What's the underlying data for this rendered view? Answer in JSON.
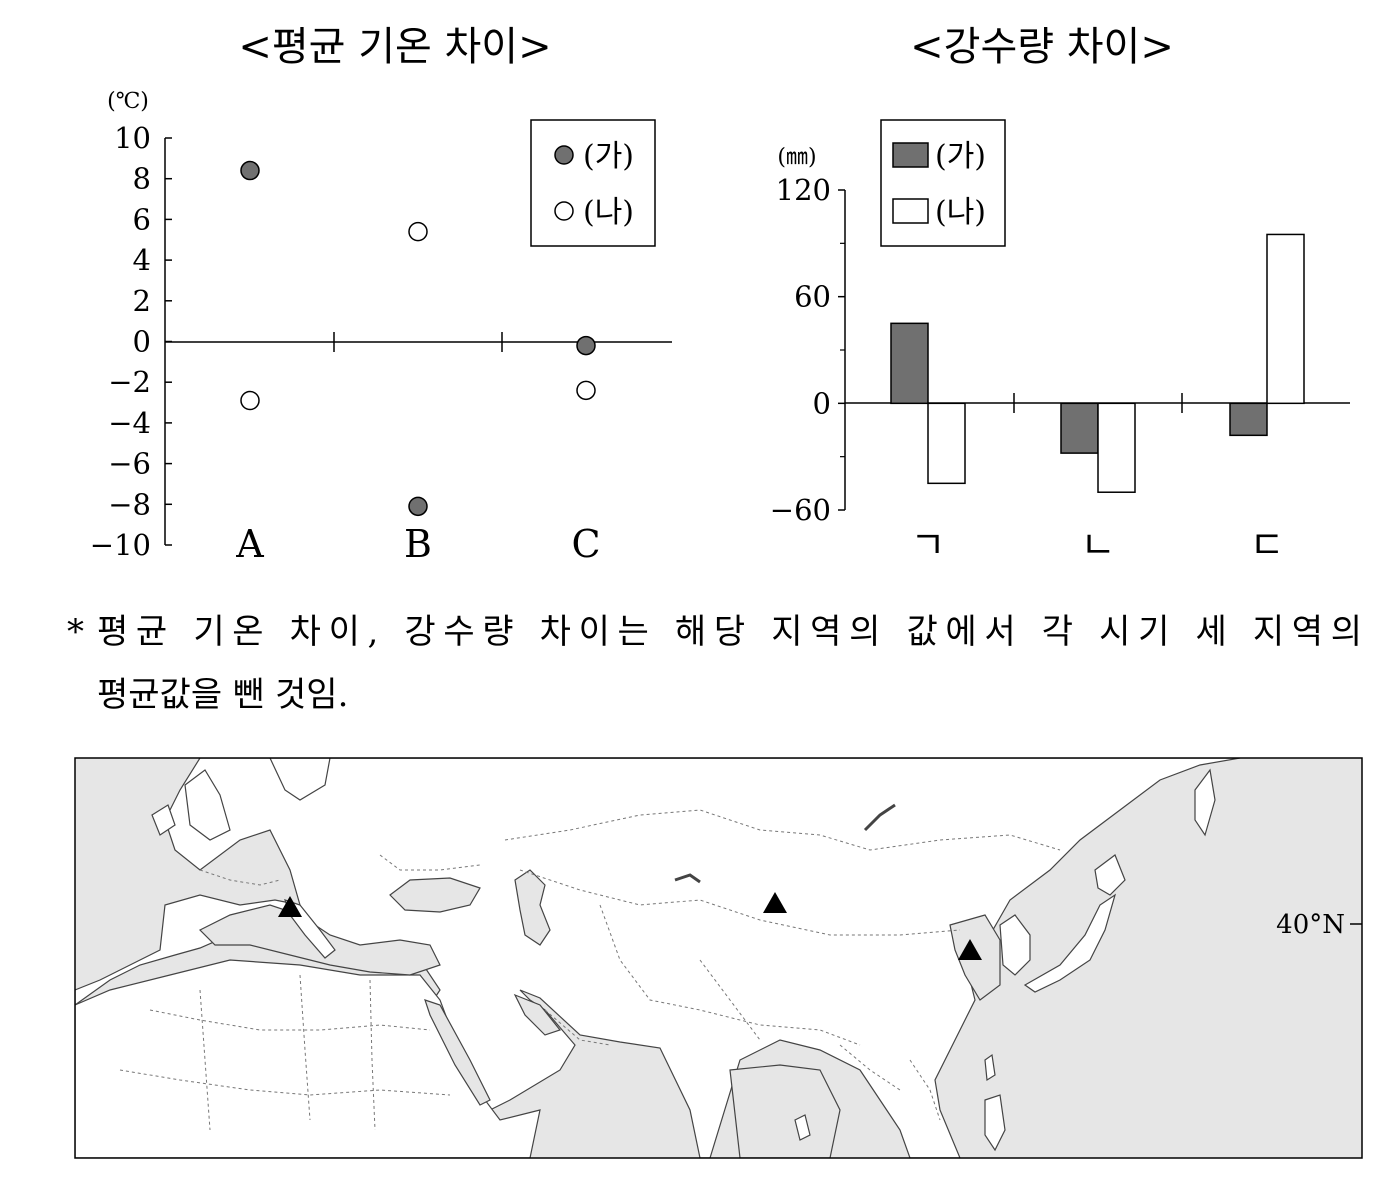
{
  "chart_data": [
    {
      "type": "scatter",
      "title": "<평균 기온 차이>",
      "ylabel": "(℃)",
      "ylim": [
        -10,
        10
      ],
      "yticks": [
        10,
        8,
        6,
        4,
        2,
        0,
        -2,
        -4,
        -6,
        -8,
        -10
      ],
      "yticklabels": [
        "10",
        "8",
        "6",
        "4",
        "2",
        "0",
        "−2",
        "−4",
        "−6",
        "−8",
        "−10"
      ],
      "categories": [
        "A",
        "B",
        "C"
      ],
      "legend_position": "top-right",
      "series": [
        {
          "name": "(가)",
          "marker": "filled-circle",
          "values": [
            8.4,
            -8.1,
            -0.2
          ]
        },
        {
          "name": "(나)",
          "marker": "open-circle",
          "values": [
            -2.9,
            5.4,
            -2.4
          ]
        }
      ]
    },
    {
      "type": "bar",
      "title": "<강수량 차이>",
      "ylabel": "(㎜)",
      "ylim": [
        -60,
        120
      ],
      "yticks": [
        120,
        60,
        0,
        -60
      ],
      "yticklabels": [
        "120",
        "60",
        "0",
        "−60"
      ],
      "categories": [
        "ㄱ",
        "ㄴ",
        "ㄷ"
      ],
      "legend_position": "top-left",
      "series": [
        {
          "name": "(가)",
          "fill": "#707070",
          "values": [
            45,
            -28,
            -18
          ]
        },
        {
          "name": "(나)",
          "fill": "#ffffff",
          "values": [
            -45,
            -50,
            95
          ]
        }
      ]
    }
  ],
  "note": {
    "marker": "*",
    "line1": "평균 기온 차이, 강수량 차이는 해당 지역의 값에서 각 시기 세 지역의",
    "line2": "평균값을 뺀 것임."
  },
  "map": {
    "latitude_label": "40°N",
    "sites": [
      "triangle-italy",
      "triangle-mongolia",
      "triangle-china"
    ]
  },
  "colors": {
    "filled_marker": "#707070",
    "sea": "#e6e6e6",
    "land": "#ffffff",
    "axis": "#000000"
  }
}
